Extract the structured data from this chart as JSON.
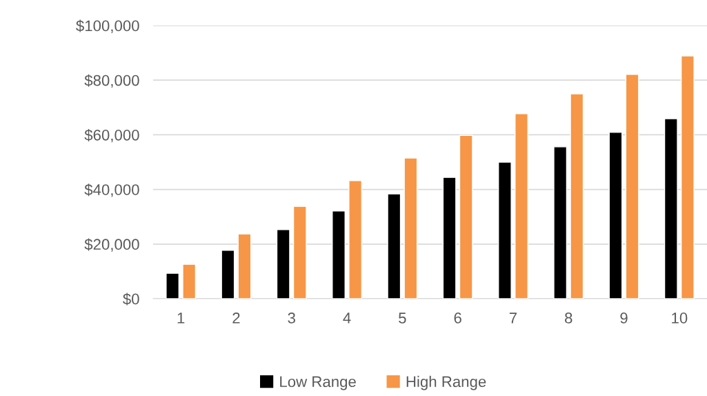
{
  "chart_data": {
    "type": "bar",
    "categories": [
      "1",
      "2",
      "3",
      "4",
      "5",
      "6",
      "7",
      "8",
      "9",
      "10"
    ],
    "series": [
      {
        "name": "Low Range",
        "color": "#000000",
        "values": [
          9300,
          17700,
          25300,
          32100,
          38400,
          44400,
          50000,
          55600,
          60900,
          65900
        ]
      },
      {
        "name": "High Range",
        "color": "#f79646",
        "values": [
          12600,
          23700,
          33800,
          43200,
          51500,
          59800,
          67700,
          75000,
          82100,
          88900
        ]
      }
    ],
    "ylim": [
      0,
      100000
    ],
    "yticks": [
      {
        "value": 0,
        "label": "$0"
      },
      {
        "value": 20000,
        "label": "$20,000"
      },
      {
        "value": 40000,
        "label": "$40,000"
      },
      {
        "value": 60000,
        "label": "$60,000"
      },
      {
        "value": 80000,
        "label": "$80,000"
      },
      {
        "value": 100000,
        "label": "$100,000"
      }
    ],
    "grid": "y",
    "legend": "bottom"
  }
}
